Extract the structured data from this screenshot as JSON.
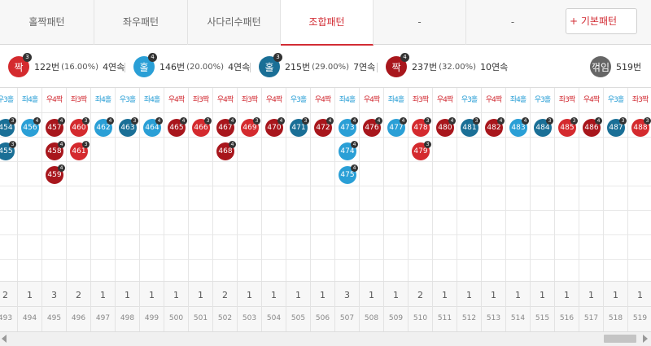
{
  "tabs": [
    {
      "label": "홀짝패턴",
      "active": false
    },
    {
      "label": "좌우패턴",
      "active": false
    },
    {
      "label": "사다리수패턴",
      "active": false
    },
    {
      "label": "조합패턴",
      "active": true
    },
    {
      "label": "-",
      "active": false
    },
    {
      "label": "-",
      "active": false
    }
  ],
  "basic_pattern_button": "+ 기본패턴",
  "stats": [
    {
      "ball": "짝",
      "sup": "3",
      "color": "#d42a2e",
      "count": "122번",
      "pct": "(16.00%)",
      "run": "4연속"
    },
    {
      "ball": "홀",
      "sup": "4",
      "color": "#2a9fd6",
      "count": "146번",
      "pct": "(20.00%)",
      "run": "4연속"
    },
    {
      "ball": "홀",
      "sup": "3",
      "color": "#1a6f96",
      "count": "215번",
      "pct": "(29.00%)",
      "run": "7연속"
    },
    {
      "ball": "짝",
      "sup": "4",
      "color": "#a8161c",
      "count": "237번",
      "pct": "(32.00%)",
      "run": "10연속"
    }
  ],
  "total": {
    "label": "꺾임",
    "value": "519번"
  },
  "columns": [
    {
      "header": "우3홀",
      "hcolor": "blue",
      "round": "493",
      "count": "2",
      "balls": [
        {
          "n": "454",
          "c": "dblue",
          "s": "3"
        },
        {
          "n": "455",
          "c": "dblue",
          "s": "3"
        }
      ]
    },
    {
      "header": "좌4홀",
      "hcolor": "blue",
      "round": "494",
      "count": "1",
      "balls": [
        {
          "n": "456",
          "c": "blue",
          "s": "4"
        }
      ]
    },
    {
      "header": "우4짝",
      "hcolor": "red",
      "round": "495",
      "count": "3",
      "balls": [
        {
          "n": "457",
          "c": "dred",
          "s": "4"
        },
        {
          "n": "458",
          "c": "dred",
          "s": "4"
        },
        {
          "n": "459",
          "c": "dred",
          "s": "4"
        }
      ]
    },
    {
      "header": "좌3짝",
      "hcolor": "red",
      "round": "496",
      "count": "2",
      "balls": [
        {
          "n": "460",
          "c": "red",
          "s": "3"
        },
        {
          "n": "461",
          "c": "red",
          "s": "3"
        }
      ]
    },
    {
      "header": "좌4홀",
      "hcolor": "blue",
      "round": "497",
      "count": "1",
      "balls": [
        {
          "n": "462",
          "c": "blue",
          "s": "4"
        }
      ]
    },
    {
      "header": "우3홀",
      "hcolor": "blue",
      "round": "498",
      "count": "1",
      "balls": [
        {
          "n": "463",
          "c": "dblue",
          "s": "3"
        }
      ]
    },
    {
      "header": "좌4홀",
      "hcolor": "blue",
      "round": "499",
      "count": "1",
      "balls": [
        {
          "n": "464",
          "c": "blue",
          "s": "4"
        }
      ]
    },
    {
      "header": "우4짝",
      "hcolor": "red",
      "round": "500",
      "count": "1",
      "balls": [
        {
          "n": "465",
          "c": "dred",
          "s": "4"
        }
      ]
    },
    {
      "header": "좌3짝",
      "hcolor": "red",
      "round": "501",
      "count": "1",
      "balls": [
        {
          "n": "466",
          "c": "red",
          "s": "3"
        }
      ]
    },
    {
      "header": "우4짝",
      "hcolor": "red",
      "round": "502",
      "count": "2",
      "balls": [
        {
          "n": "467",
          "c": "dred",
          "s": "4"
        },
        {
          "n": "468",
          "c": "dred",
          "s": "4"
        }
      ]
    },
    {
      "header": "좌3짝",
      "hcolor": "red",
      "round": "503",
      "count": "1",
      "balls": [
        {
          "n": "469",
          "c": "red",
          "s": "3"
        }
      ]
    },
    {
      "header": "우4짝",
      "hcolor": "red",
      "round": "504",
      "count": "1",
      "balls": [
        {
          "n": "470",
          "c": "dred",
          "s": "4"
        }
      ]
    },
    {
      "header": "우3홀",
      "hcolor": "blue",
      "round": "505",
      "count": "1",
      "balls": [
        {
          "n": "471",
          "c": "dblue",
          "s": "3"
        }
      ]
    },
    {
      "header": "우4짝",
      "hcolor": "red",
      "round": "506",
      "count": "1",
      "balls": [
        {
          "n": "472",
          "c": "dred",
          "s": "4"
        }
      ]
    },
    {
      "header": "좌4홀",
      "hcolor": "blue",
      "round": "507",
      "count": "3",
      "balls": [
        {
          "n": "473",
          "c": "blue",
          "s": "4"
        },
        {
          "n": "474",
          "c": "blue",
          "s": "4"
        },
        {
          "n": "475",
          "c": "blue",
          "s": "4"
        }
      ]
    },
    {
      "header": "우4짝",
      "hcolor": "red",
      "round": "508",
      "count": "1",
      "balls": [
        {
          "n": "476",
          "c": "dred",
          "s": "4"
        }
      ]
    },
    {
      "header": "좌4홀",
      "hcolor": "blue",
      "round": "509",
      "count": "1",
      "balls": [
        {
          "n": "477",
          "c": "blue",
          "s": "4"
        }
      ]
    },
    {
      "header": "좌3짝",
      "hcolor": "red",
      "round": "510",
      "count": "2",
      "balls": [
        {
          "n": "478",
          "c": "red",
          "s": "3"
        },
        {
          "n": "479",
          "c": "red",
          "s": "3"
        }
      ]
    },
    {
      "header": "우4짝",
      "hcolor": "red",
      "round": "511",
      "count": "1",
      "balls": [
        {
          "n": "480",
          "c": "dred",
          "s": "4"
        }
      ]
    },
    {
      "header": "우3홀",
      "hcolor": "blue",
      "round": "512",
      "count": "1",
      "balls": [
        {
          "n": "481",
          "c": "dblue",
          "s": "3"
        }
      ]
    },
    {
      "header": "우4짝",
      "hcolor": "red",
      "round": "513",
      "count": "1",
      "balls": [
        {
          "n": "482",
          "c": "dred",
          "s": "4"
        }
      ]
    },
    {
      "header": "좌4홀",
      "hcolor": "blue",
      "round": "514",
      "count": "1",
      "balls": [
        {
          "n": "483",
          "c": "blue",
          "s": "4"
        }
      ]
    },
    {
      "header": "우3홀",
      "hcolor": "blue",
      "round": "515",
      "count": "1",
      "balls": [
        {
          "n": "484",
          "c": "dblue",
          "s": "3"
        }
      ]
    },
    {
      "header": "좌3짝",
      "hcolor": "red",
      "round": "516",
      "count": "1",
      "balls": [
        {
          "n": "485",
          "c": "red",
          "s": "3"
        }
      ]
    },
    {
      "header": "우4짝",
      "hcolor": "red",
      "round": "517",
      "count": "1",
      "balls": [
        {
          "n": "486",
          "c": "dred",
          "s": "4"
        }
      ]
    },
    {
      "header": "우3홀",
      "hcolor": "blue",
      "round": "518",
      "count": "1",
      "balls": [
        {
          "n": "487",
          "c": "dblue",
          "s": "3"
        }
      ]
    },
    {
      "header": "좌3짝",
      "hcolor": "red",
      "round": "519",
      "count": "1",
      "balls": [
        {
          "n": "488",
          "c": "red",
          "s": "3"
        }
      ]
    }
  ]
}
